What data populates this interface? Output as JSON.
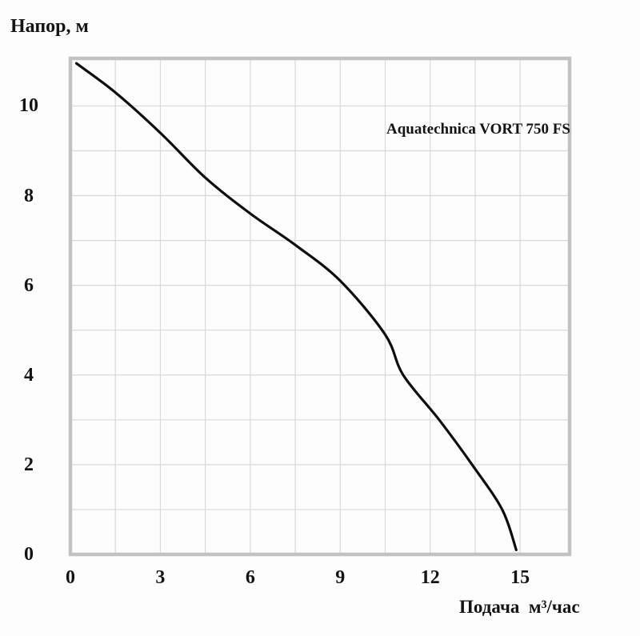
{
  "chart_data": {
    "type": "line",
    "title": "",
    "annotation": "Aquatechnica VORT 750 FS",
    "xlabel": "Подача  м³/час",
    "ylabel": "Напор, м",
    "x_ticks": [
      "0",
      "3",
      "6",
      "9",
      "12",
      "15"
    ],
    "x_tick_values": [
      0,
      3,
      6,
      9,
      12,
      15
    ],
    "y_ticks": [
      "0",
      "2",
      "4",
      "6",
      "8",
      "10"
    ],
    "y_tick_values": [
      0,
      2,
      4,
      6,
      8,
      10
    ],
    "xlim": [
      0,
      16.65
    ],
    "ylim": [
      0,
      11.06
    ],
    "x_grid_step": 1.5,
    "y_grid_step": 1,
    "grid": "on",
    "legend": "none",
    "series": [
      {
        "name": "Aquatechnica VORT 750 FS",
        "points": [
          [
            0.2,
            10.95
          ],
          [
            1.5,
            10.3
          ],
          [
            3.0,
            9.4
          ],
          [
            4.5,
            8.4
          ],
          [
            6.0,
            7.6
          ],
          [
            7.5,
            6.9
          ],
          [
            9.0,
            6.1
          ],
          [
            10.5,
            4.9
          ],
          [
            11.1,
            4.0
          ],
          [
            12.3,
            3.0
          ],
          [
            13.4,
            2.0
          ],
          [
            14.4,
            1.0
          ],
          [
            14.87,
            0.1
          ]
        ]
      }
    ],
    "colors": {
      "curve": "#0e0e0e",
      "grid": "#d9d9d9",
      "frame": "#c2c2c2",
      "text": "#141414",
      "background": "#fdfdfd"
    }
  }
}
